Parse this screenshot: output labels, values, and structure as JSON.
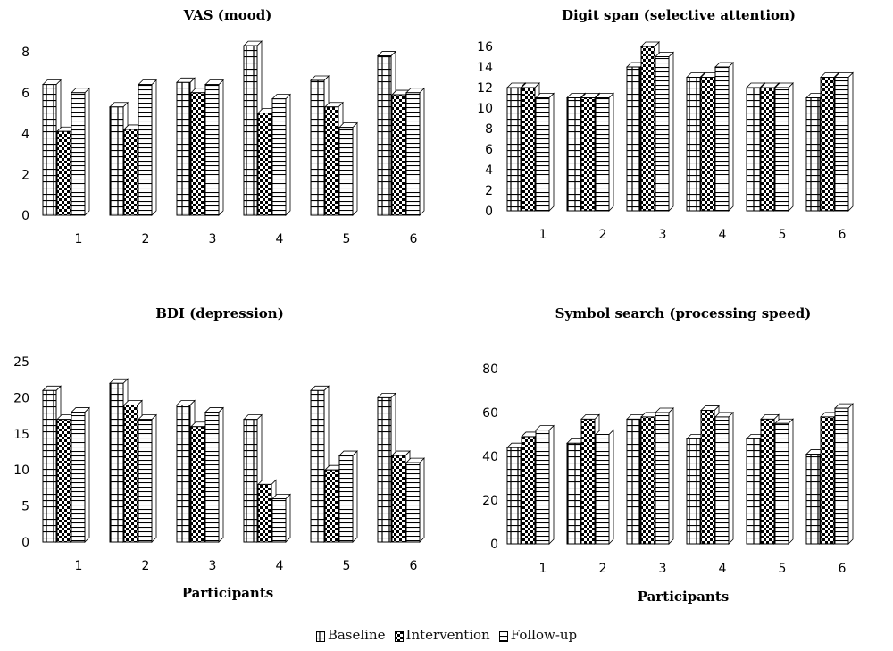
{
  "legend": {
    "baseline": "Baseline",
    "intervention": "Intervention",
    "followup": "Follow-up"
  },
  "chart_data": [
    {
      "type": "bar",
      "title": "VAS (mood)",
      "xlabel": "",
      "ylabel": "",
      "categories": [
        "1",
        "2",
        "3",
        "4",
        "5",
        "6"
      ],
      "ylim": [
        0,
        8
      ],
      "yticks": [
        0,
        2,
        4,
        6,
        8
      ],
      "series": [
        {
          "name": "Baseline",
          "values": [
            6.4,
            5.3,
            6.5,
            8.3,
            6.6,
            7.8
          ]
        },
        {
          "name": "Intervention",
          "values": [
            4.1,
            4.2,
            6.0,
            5.0,
            5.3,
            5.9
          ]
        },
        {
          "name": "Follow-up",
          "values": [
            6.0,
            6.4,
            6.4,
            5.7,
            4.3,
            6.0
          ]
        }
      ]
    },
    {
      "type": "bar",
      "title": "Digit span (selective attention)",
      "xlabel": "",
      "ylabel": "",
      "categories": [
        "1",
        "2",
        "3",
        "4",
        "5",
        "6"
      ],
      "ylim": [
        0,
        16
      ],
      "yticks": [
        0,
        2,
        4,
        6,
        8,
        10,
        12,
        14,
        16
      ],
      "series": [
        {
          "name": "Baseline",
          "values": [
            12,
            11,
            14,
            13,
            12,
            11
          ]
        },
        {
          "name": "Intervention",
          "values": [
            12,
            11,
            16,
            13,
            12,
            13
          ]
        },
        {
          "name": "Follow-up",
          "values": [
            11,
            11,
            15,
            14,
            12,
            13
          ]
        }
      ]
    },
    {
      "type": "bar",
      "title": "BDI (depression)",
      "xlabel": "Participants",
      "ylabel": "",
      "categories": [
        "1",
        "2",
        "3",
        "4",
        "5",
        "6"
      ],
      "ylim": [
        0,
        25
      ],
      "yticks": [
        0,
        5,
        10,
        15,
        20,
        25
      ],
      "series": [
        {
          "name": "Baseline",
          "values": [
            21,
            22,
            19,
            17,
            21,
            20
          ]
        },
        {
          "name": "Intervention",
          "values": [
            17,
            19,
            16,
            8,
            10,
            12
          ]
        },
        {
          "name": "Follow-up",
          "values": [
            18,
            17,
            18,
            6,
            12,
            11
          ]
        }
      ]
    },
    {
      "type": "bar",
      "title": "Symbol search (processing speed)",
      "xlabel": "Participants",
      "ylabel": "",
      "categories": [
        "1",
        "2",
        "3",
        "4",
        "5",
        "6"
      ],
      "ylim": [
        0,
        80
      ],
      "yticks": [
        0,
        20,
        40,
        60,
        80
      ],
      "series": [
        {
          "name": "Baseline",
          "values": [
            44,
            46,
            57,
            48,
            48,
            41
          ]
        },
        {
          "name": "Intervention",
          "values": [
            49,
            57,
            58,
            61,
            57,
            58
          ]
        },
        {
          "name": "Follow-up",
          "values": [
            52,
            50,
            60,
            58,
            55,
            62
          ]
        }
      ]
    }
  ]
}
